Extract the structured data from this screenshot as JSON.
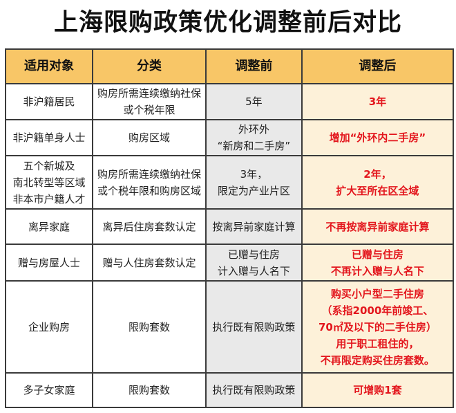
{
  "title": "上海限购政策优化调整前后对比",
  "headers": [
    "适用对象",
    "分类",
    "调整前",
    "调整后"
  ],
  "colors": {
    "header_bg": "#f8c667",
    "before_bg": "#e9e9e9",
    "after_bg": "#fdf1d9",
    "highlight_text": "#e3161d"
  },
  "rows": [
    {
      "target": [
        "非沪籍居民"
      ],
      "category": [
        "购房所需连续缴纳社保",
        "或个税年限"
      ],
      "before": [
        "5年"
      ],
      "after": [
        "3年"
      ]
    },
    {
      "target": [
        "非沪籍单身人士"
      ],
      "category": [
        "购房区域"
      ],
      "before": [
        "外环外",
        "“新房和二手房”"
      ],
      "after": [
        "增加“外环内二手房”"
      ]
    },
    {
      "target": [
        "五个新城及",
        "南北转型等区域",
        "非本市户籍人才"
      ],
      "category": [
        "购房所需连续缴纳社保",
        "或个税年限和购房区域"
      ],
      "before": [
        "3年，",
        "限定为产业片区"
      ],
      "after": [
        "2年，",
        "扩大至所在区全域"
      ]
    },
    {
      "target": [
        "离异家庭"
      ],
      "category": [
        "离异后住房套数认定"
      ],
      "before": [
        "按离异前家庭计算"
      ],
      "after": [
        "不再按离异前家庭计算"
      ]
    },
    {
      "target": [
        "赠与房屋人士"
      ],
      "category": [
        "赠与人住房套数认定"
      ],
      "before": [
        "已赠与住房",
        "计入赠与人名下"
      ],
      "after": [
        "已赠与住房",
        "不再计入赠与人名下"
      ]
    },
    {
      "target": [
        "企业购房"
      ],
      "category": [
        "限购套数"
      ],
      "before": [
        "执行既有限购政策"
      ],
      "after": [
        "购买小户型二手住房",
        "（系指2000年前竣工、",
        "70㎡及以下的二手住房）",
        "用于职工租住的，",
        "不再限定购买住房套数。"
      ]
    },
    {
      "target": [
        "多子女家庭"
      ],
      "category": [
        "限购套数"
      ],
      "before": [
        "执行既有限购政策"
      ],
      "after": [
        "可增购1套"
      ]
    }
  ]
}
